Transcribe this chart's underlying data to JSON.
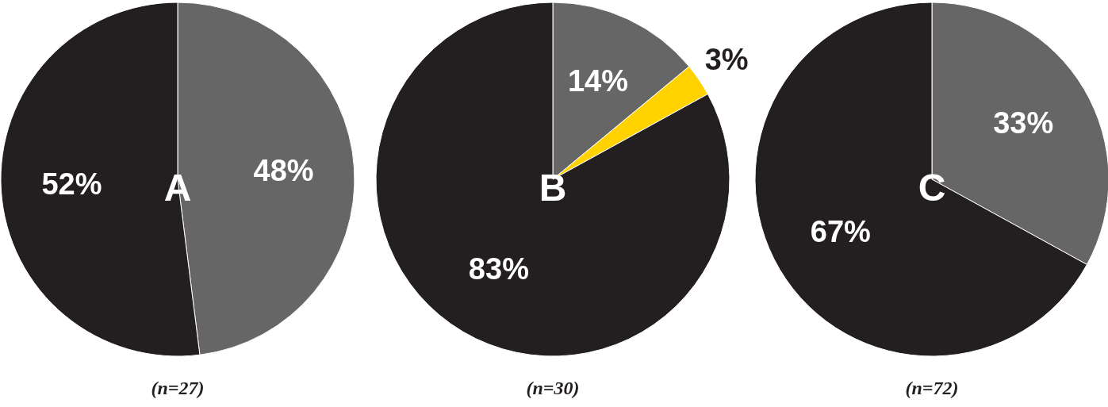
{
  "chart_data": [
    {
      "type": "pie",
      "title": "A",
      "categories": [
        null,
        null
      ],
      "values": [
        48,
        52
      ],
      "value_labels": [
        "48%",
        "52%"
      ],
      "colors": [
        "#666666",
        "#231f20"
      ],
      "legend": false,
      "annotations": [
        "(n=27)"
      ]
    },
    {
      "type": "pie",
      "title": "B",
      "categories": [
        null,
        null,
        null
      ],
      "values": [
        14,
        3,
        83
      ],
      "value_labels": [
        "14%",
        "3%",
        "83%"
      ],
      "colors": [
        "#666666",
        "#ffd200",
        "#231f20"
      ],
      "legend": false,
      "annotations": [
        "(n=30)"
      ]
    },
    {
      "type": "pie",
      "title": "C",
      "categories": [
        null,
        null
      ],
      "values": [
        33,
        67
      ],
      "value_labels": [
        "33%",
        "67%"
      ],
      "colors": [
        "#666666",
        "#231f20"
      ],
      "legend": false,
      "annotations": [
        "(n=72)"
      ]
    }
  ]
}
